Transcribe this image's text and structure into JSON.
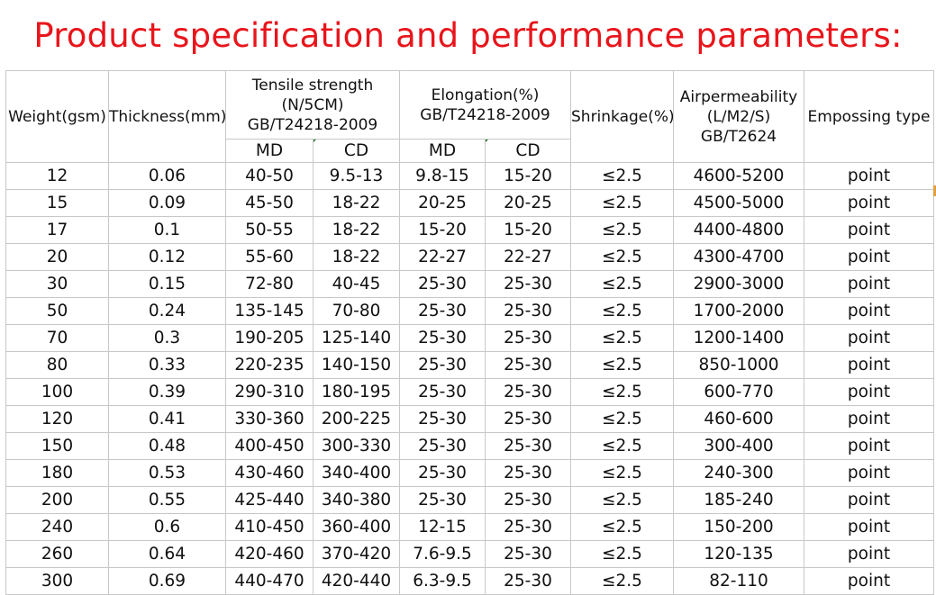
{
  "title": "Product specification and performance parameters:",
  "headers": {
    "weight": "Weight(gsm)",
    "thickness": "Thickness(mm)",
    "tensile": [
      "Tensile strength",
      "(N/5CM)",
      "GB/T24218-2009"
    ],
    "elongation": [
      "Elongation(%)",
      "GB/T24218-2009"
    ],
    "shrinkage": "Shrinkage(%)",
    "airperm": [
      "Airpermeability",
      "(L/M2/S)",
      "GB/T2624"
    ],
    "embossing": "Empossing type",
    "md": "MD",
    "cd": "CD"
  },
  "rows": [
    [
      "12",
      "0.06",
      "40-50",
      "9.5-13",
      "9.8-15",
      "15-20",
      "≤2.5",
      "4600-5200",
      "point"
    ],
    [
      "15",
      "0.09",
      "45-50",
      "18-22",
      "20-25",
      "20-25",
      "≤2.5",
      "4500-5000",
      "point"
    ],
    [
      "17",
      "0.1",
      "50-55",
      "18-22",
      "15-20",
      "15-20",
      "≤2.5",
      "4400-4800",
      "point"
    ],
    [
      "20",
      "0.12",
      "55-60",
      "18-22",
      "22-27",
      "22-27",
      "≤2.5",
      "4300-4700",
      "point"
    ],
    [
      "30",
      "0.15",
      "72-80",
      "40-45",
      "25-30",
      "25-30",
      "≤2.5",
      "2900-3000",
      "point"
    ],
    [
      "50",
      "0.24",
      "135-145",
      "70-80",
      "25-30",
      "25-30",
      "≤2.5",
      "1700-2000",
      "point"
    ],
    [
      "70",
      "0.3",
      "190-205",
      "125-140",
      "25-30",
      "25-30",
      "≤2.5",
      "1200-1400",
      "point"
    ],
    [
      "80",
      "0.33",
      "220-235",
      "140-150",
      "25-30",
      "25-30",
      "≤2.5",
      "850-1000",
      "point"
    ],
    [
      "100",
      "0.39",
      "290-310",
      "180-195",
      "25-30",
      "25-30",
      "≤2.5",
      "600-770",
      "point"
    ],
    [
      "120",
      "0.41",
      "330-360",
      "200-225",
      "25-30",
      "25-30",
      "≤2.5",
      "460-600",
      "point"
    ],
    [
      "150",
      "0.48",
      "400-450",
      "300-330",
      "25-30",
      "25-30",
      "≤2.5",
      "300-400",
      "point"
    ],
    [
      "180",
      "0.53",
      "430-460",
      "340-400",
      "25-30",
      "25-30",
      "≤2.5",
      "240-300",
      "point"
    ],
    [
      "200",
      "0.55",
      "425-440",
      "340-380",
      "25-30",
      "25-30",
      "≤2.5",
      "185-240",
      "point"
    ],
    [
      "240",
      "0.6",
      "410-450",
      "360-400",
      "12-15",
      "25-30",
      "≤2.5",
      "150-200",
      "point"
    ],
    [
      "260",
      "0.64",
      "420-460",
      "370-420",
      "7.6-9.5",
      "25-30",
      "≤2.5",
      "120-135",
      "point"
    ],
    [
      "300",
      "0.69",
      "440-470",
      "420-440",
      "6.3-9.5",
      "25-30",
      "≤2.5",
      "82-110",
      "point"
    ]
  ]
}
